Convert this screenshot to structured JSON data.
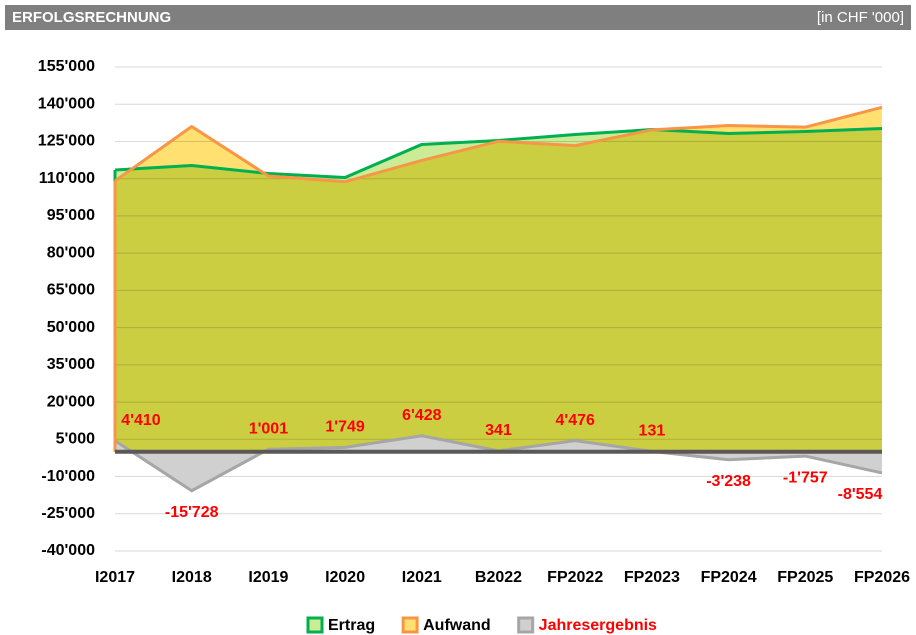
{
  "chart_data": {
    "type": "area",
    "title": "ERFOLGSRECHNUNG",
    "subtitle": "[in CHF '000]",
    "categories": [
      "I2017",
      "I2018",
      "I2019",
      "I2020",
      "I2021",
      "B2022",
      "FP2022",
      "FP2023",
      "FP2024",
      "FP2025",
      "FP2026"
    ],
    "series": [
      {
        "name": "Ertrag",
        "color": "#00b050",
        "fill": "#cceb96",
        "values": [
          113500,
          115300,
          112100,
          110500,
          123800,
          125400,
          127800,
          129800,
          128200,
          129000,
          130200
        ]
      },
      {
        "name": "Aufwand",
        "color": "#f79646",
        "fill": "#ffe070",
        "values": [
          109090,
          131028,
          111099,
          108751,
          117372,
          125059,
          123324,
          129669,
          131438,
          130757,
          138754
        ]
      },
      {
        "name": "Jahresergebnis",
        "color": "#a6a6a6",
        "fill": "#d0d0d0",
        "values": [
          4410,
          -15728,
          1001,
          1749,
          6428,
          341,
          4476,
          131,
          -3238,
          -1757,
          -8554
        ],
        "value_labels": [
          "4'410",
          "-15'728",
          "1'001",
          "1'749",
          "6'428",
          "341",
          "4'476",
          "131",
          "-3'238",
          "-1'757",
          "-8'554"
        ]
      }
    ],
    "ylim": [
      -40000,
      155000
    ],
    "yticks": [
      {
        "value": -40000,
        "label": "-40'000"
      },
      {
        "value": -25000,
        "label": "-25'000"
      },
      {
        "value": -10000,
        "label": "-10'000"
      },
      {
        "value": 5000,
        "label": "5'000"
      },
      {
        "value": 20000,
        "label": "20'000"
      },
      {
        "value": 35000,
        "label": "35'000"
      },
      {
        "value": 50000,
        "label": "50'000"
      },
      {
        "value": 65000,
        "label": "65'000"
      },
      {
        "value": 80000,
        "label": "80'000"
      },
      {
        "value": 95000,
        "label": "95'000"
      },
      {
        "value": 110000,
        "label": "110'000"
      },
      {
        "value": 125000,
        "label": "125'000"
      },
      {
        "value": 140000,
        "label": "140'000"
      },
      {
        "value": 155000,
        "label": "155'000"
      }
    ],
    "grid": true
  }
}
